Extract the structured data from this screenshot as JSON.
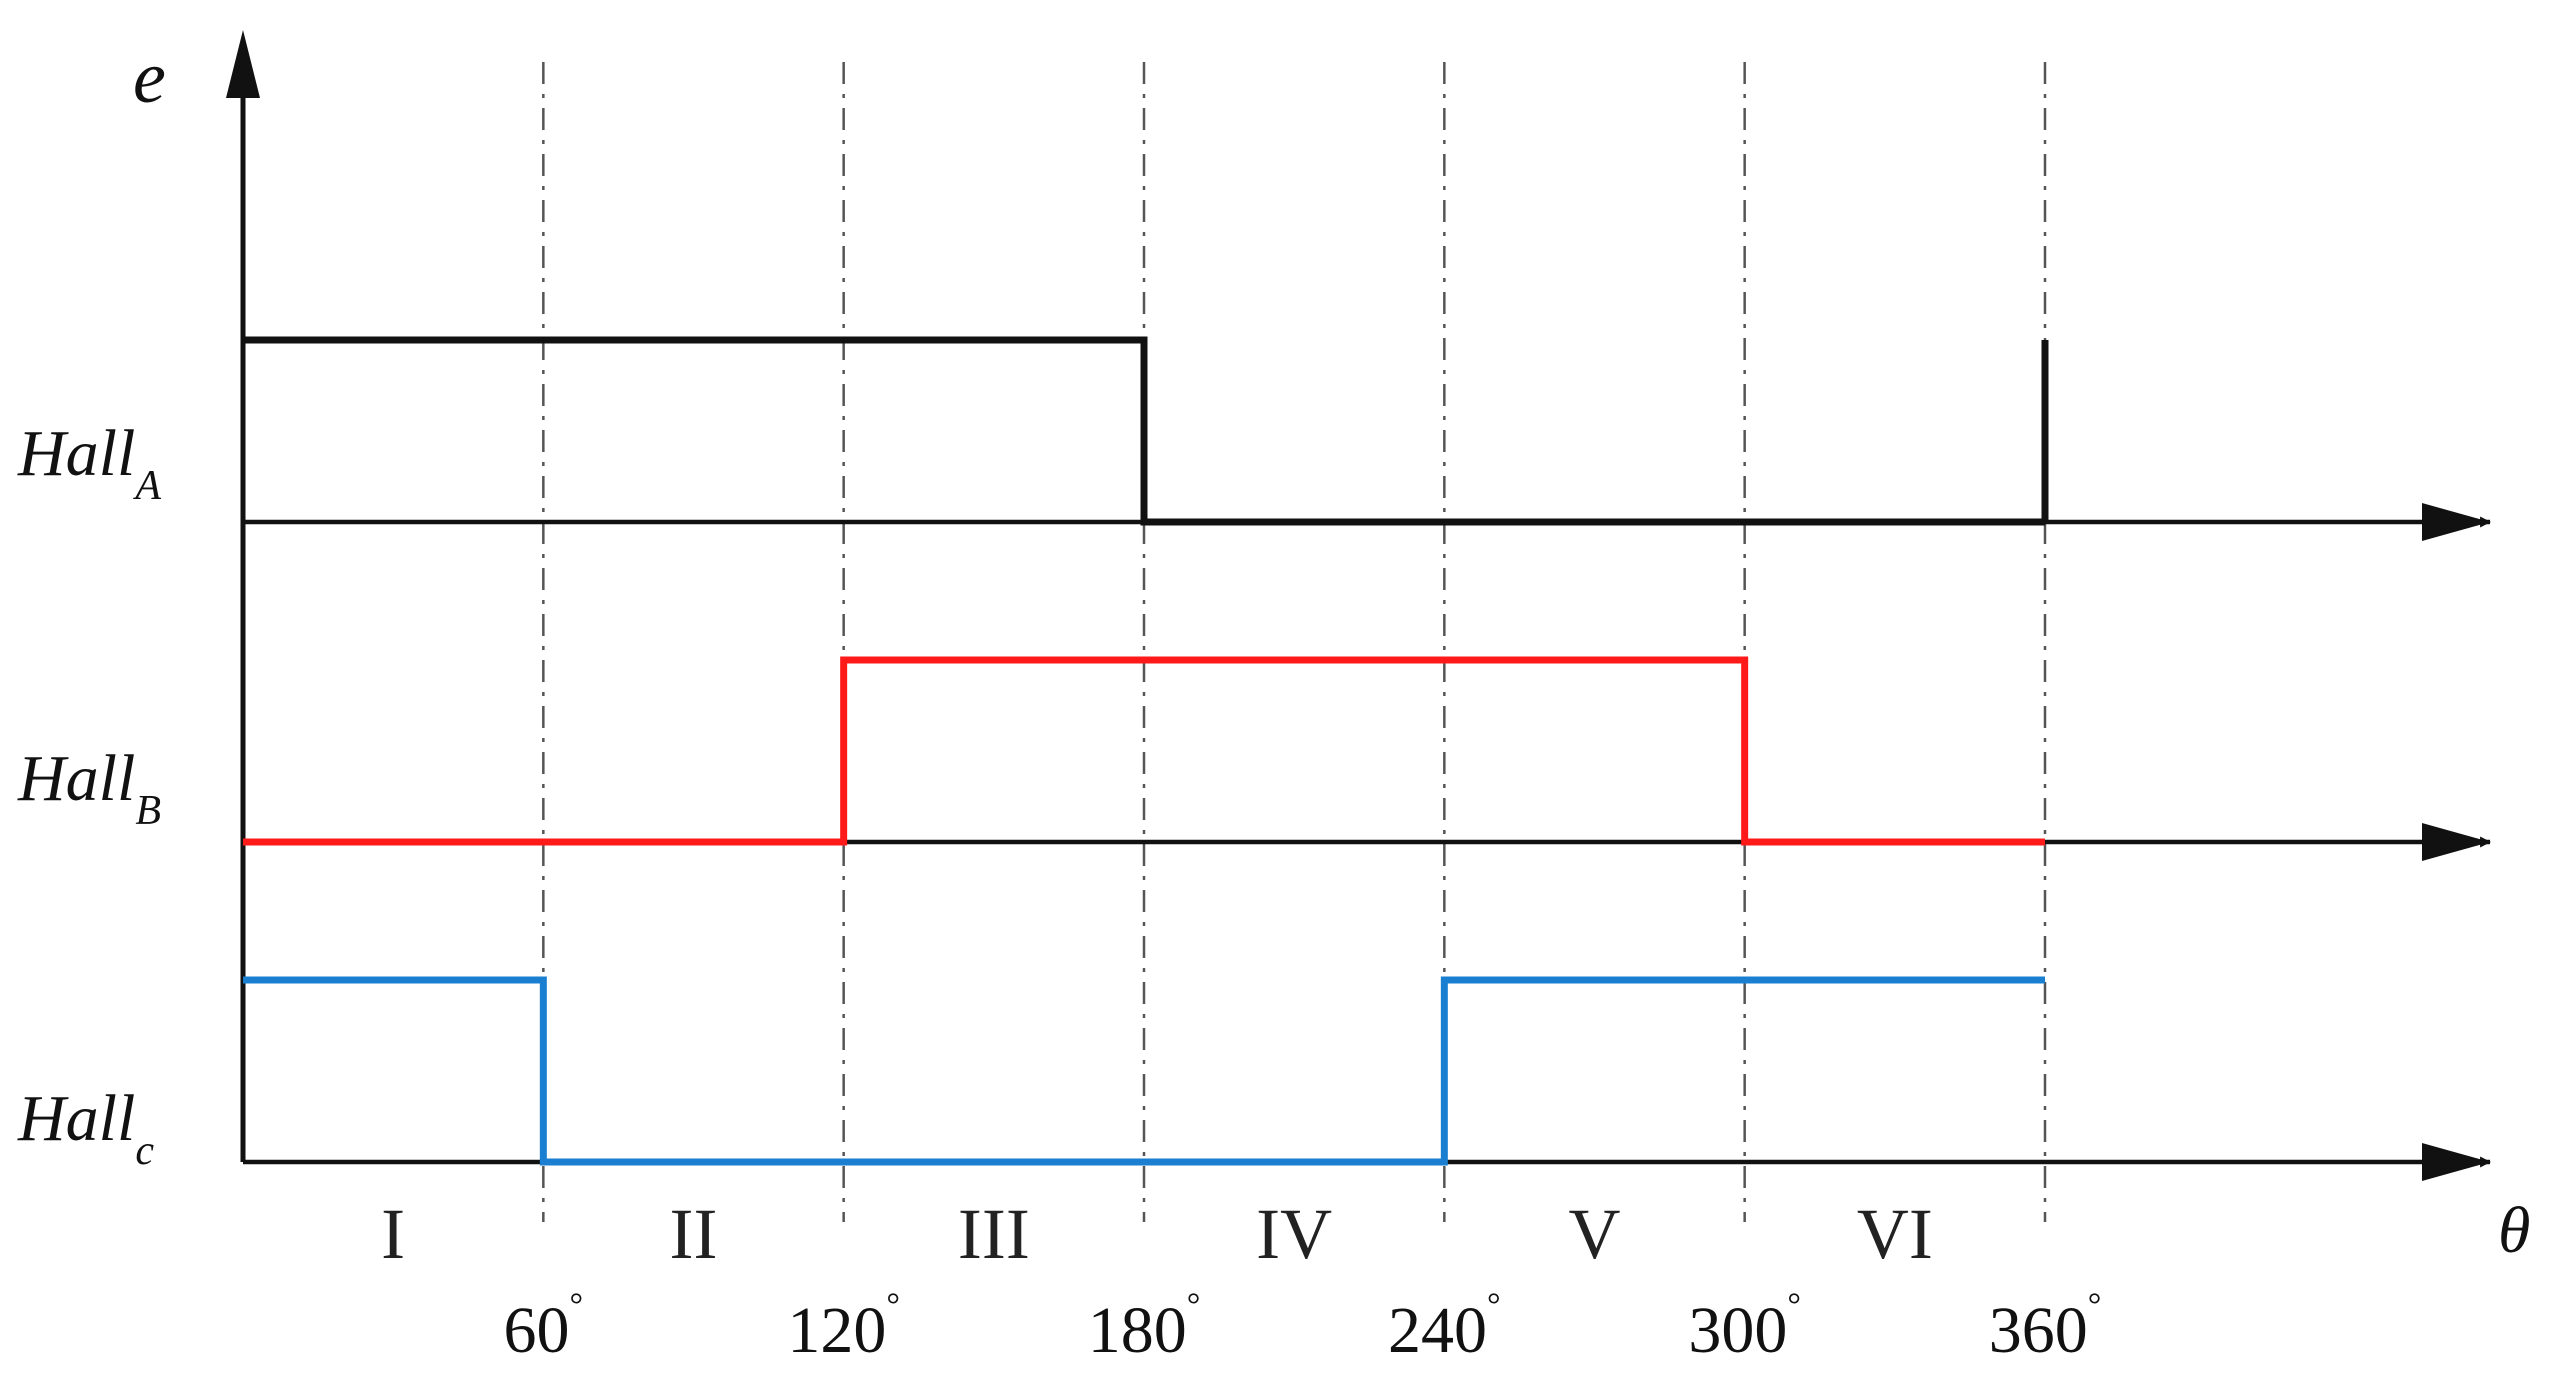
{
  "y_axis": {
    "label": "e"
  },
  "x_axis": {
    "label": "θ"
  },
  "signals": [
    {
      "base": "Hall",
      "subscript": "A",
      "color": "#111111",
      "segments": [
        {
          "from": 0,
          "to": 180,
          "level": 1
        },
        {
          "from": 180,
          "to": 360,
          "level": 0
        }
      ],
      "end_tick_at": 360
    },
    {
      "base": "Hall",
      "subscript": "B",
      "color": "#ff1a1a",
      "segments": [
        {
          "from": 0,
          "to": 120,
          "level": 0
        },
        {
          "from": 120,
          "to": 300,
          "level": 1
        },
        {
          "from": 300,
          "to": 360,
          "level": 0
        }
      ]
    },
    {
      "base": "Hall",
      "subscript": "c",
      "color": "#1a7fd0",
      "segments": [
        {
          "from": 0,
          "to": 60,
          "level": 1
        },
        {
          "from": 60,
          "to": 240,
          "level": 0
        },
        {
          "from": 240,
          "to": 360,
          "level": 1
        }
      ]
    }
  ],
  "sectors": [
    "I",
    "II",
    "III",
    "IV",
    "V",
    "VI"
  ],
  "angle_ticks": [
    {
      "value": 60,
      "label": "60",
      "unit": "°"
    },
    {
      "value": 120,
      "label": "120",
      "unit": "°"
    },
    {
      "value": 180,
      "label": "180",
      "unit": "°"
    },
    {
      "value": 240,
      "label": "240",
      "unit": "°"
    },
    {
      "value": 300,
      "label": "300",
      "unit": "°"
    },
    {
      "value": 360,
      "label": "360",
      "unit": "°"
    }
  ]
}
